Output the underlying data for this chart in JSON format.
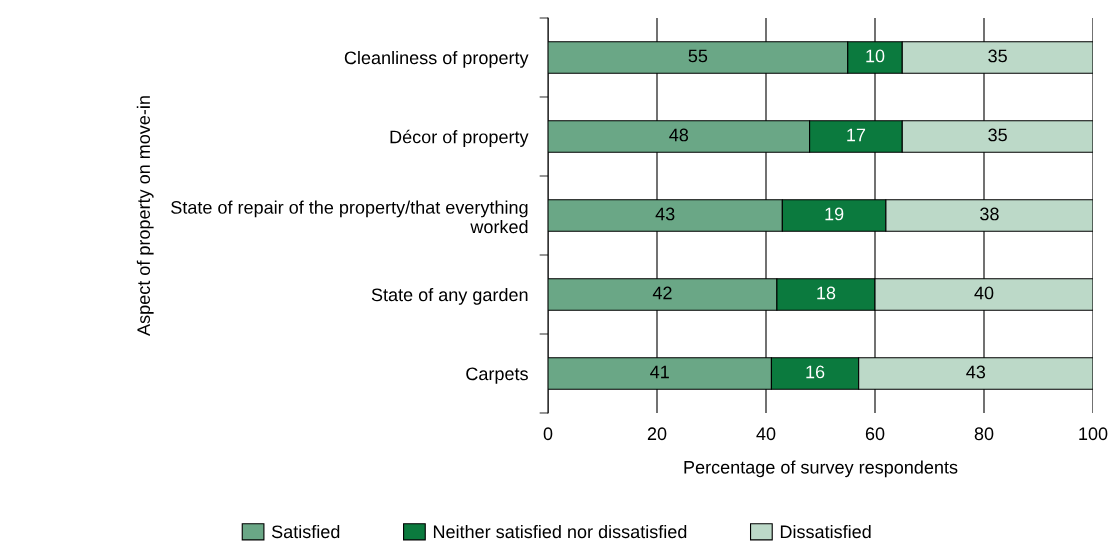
{
  "chart_data": {
    "type": "bar",
    "orientation": "horizontal",
    "stacked": true,
    "xlabel": "Percentage of survey respondents",
    "ylabel": "Aspect of property on move-in",
    "categories": [
      "Cleanliness of property",
      "Décor of property",
      "State of repair of the property/that everything\nworked",
      "State of any garden",
      "Carpets"
    ],
    "series": [
      {
        "name": "Satisfied",
        "color": "#6aa786",
        "values": [
          55,
          48,
          43,
          42,
          41
        ]
      },
      {
        "name": "Neither satisfied nor dissatisfied",
        "color": "#0b7a3e",
        "values": [
          10,
          17,
          19,
          18,
          16
        ]
      },
      {
        "name": "Dissatisfied",
        "color": "#bcd9c8",
        "values": [
          35,
          35,
          38,
          40,
          43
        ]
      }
    ],
    "xlim": [
      0,
      100
    ],
    "xticks": [
      0,
      20,
      40,
      60,
      80,
      100
    ],
    "data_labels": true,
    "grid": "x",
    "legend": "bottom"
  }
}
